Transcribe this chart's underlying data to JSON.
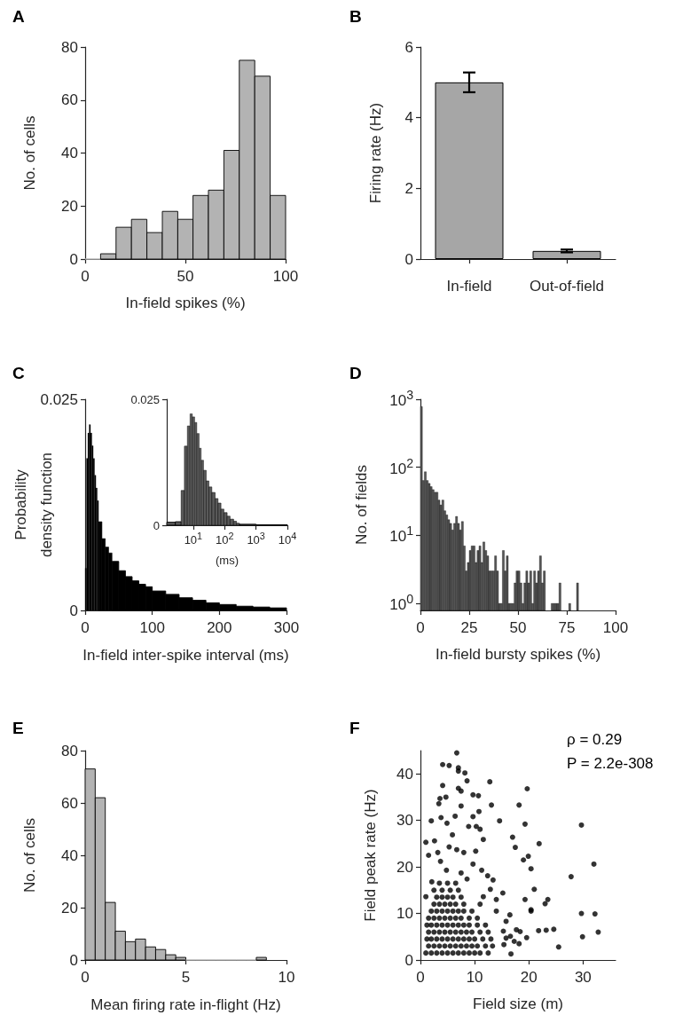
{
  "chart_data": [
    {
      "type": "histogram",
      "title": "A",
      "xlabel": "In-field spikes (%)",
      "ylabel": "No. of cells",
      "color": "#b3b3b3",
      "bins": [
        0,
        7.7,
        15.4,
        23.1,
        30.8,
        38.5,
        46.2,
        53.8,
        61.5,
        69.2,
        76.9,
        84.6,
        92.3,
        100
      ],
      "values": [
        0,
        2,
        12,
        15,
        10,
        18,
        15,
        24,
        26,
        41,
        75,
        69,
        24
      ],
      "xlim": [
        0,
        100
      ],
      "xticks": [
        0,
        50,
        100
      ],
      "ylim": [
        0,
        80
      ],
      "yticks": [
        0,
        20,
        40,
        60,
        80
      ]
    },
    {
      "type": "bar",
      "title": "B",
      "ylabel": "Firing rate (Hz)",
      "color": "#a6a6a6",
      "categories": [
        "In-field",
        "Out-of-field"
      ],
      "values": [
        5.0,
        0.23
      ],
      "errors": [
        0.28,
        0.04
      ],
      "ylim": [
        0,
        6
      ],
      "yticks": [
        0,
        2,
        4,
        6
      ]
    },
    {
      "type": "histogram",
      "title": "C",
      "xlabel": "In-field inter-spike interval (ms)",
      "ylabel": "Probability density function",
      "color": "#000000",
      "bins": [
        0,
        2,
        4,
        6,
        8,
        10,
        12,
        14,
        16,
        18,
        20,
        25,
        30,
        35,
        40,
        50,
        60,
        70,
        80,
        90,
        100,
        120,
        140,
        160,
        180,
        200,
        225,
        250,
        275,
        300
      ],
      "values": [
        0.005,
        0.018,
        0.021,
        0.022,
        0.021,
        0.0195,
        0.018,
        0.016,
        0.0145,
        0.013,
        0.0105,
        0.0085,
        0.0075,
        0.0068,
        0.0058,
        0.0047,
        0.004,
        0.0035,
        0.0031,
        0.0028,
        0.0023,
        0.0019,
        0.0015,
        0.0012,
        0.0009,
        0.0007,
        0.0005,
        0.0004,
        0.0003
      ],
      "xlim": [
        0,
        300
      ],
      "xticks": [
        0,
        100,
        200,
        300
      ],
      "ylim": [
        0,
        0.025
      ],
      "yticks": [
        0,
        0.025
      ]
    },
    {
      "type": "histogram",
      "xlabel": "(ms)",
      "color": "#595959",
      "log": "x",
      "bins": [
        1.43,
        2.68,
        4.12,
        5.22,
        6.49,
        7.89,
        9.37,
        11.1,
        13.0,
        15.4,
        17.9,
        21.3,
        25.9,
        31.5,
        39.1,
        49.6,
        61.5,
        76.4,
        94.8,
        120,
        149,
        193,
        240,
        298,
        1000,
        10000
      ],
      "values": [
        0.0006,
        0.0007,
        0.0069,
        0.0157,
        0.0197,
        0.0221,
        0.0215,
        0.0204,
        0.0182,
        0.0153,
        0.0129,
        0.0109,
        0.0088,
        0.0076,
        0.0065,
        0.0053,
        0.0044,
        0.0032,
        0.0025,
        0.0018,
        0.0012,
        0.0008,
        0.0004,
        0.0002,
        0.0001
      ],
      "xlim": [
        1.43,
        10000
      ],
      "xticks": [
        {
          "value": 10,
          "label": "10$^{1}$"
        },
        {
          "value": 100,
          "label": "10$^{2}$"
        },
        {
          "value": 1000,
          "label": "10$^{3}$"
        },
        {
          "value": 10000,
          "label": "10$^{4}$"
        }
      ],
      "ylim": [
        0,
        0.025
      ],
      "yticks": [
        0,
        0.025
      ]
    },
    {
      "type": "histogram",
      "title": "D",
      "xlabel": "In-field bursty spikes (%)",
      "ylabel": "No. of fields",
      "color": "#555555",
      "log": true,
      "bins": [
        0,
        1,
        2,
        3,
        4,
        5,
        6,
        7,
        8,
        9,
        10,
        11,
        12,
        13,
        14,
        15,
        16,
        17,
        18,
        19,
        20,
        21,
        22,
        23,
        24,
        25,
        26,
        27,
        28,
        29,
        30,
        31,
        32,
        33,
        34,
        35,
        36,
        37,
        38,
        39,
        40,
        41,
        42,
        43,
        44,
        45,
        46,
        47,
        48,
        49,
        50,
        51,
        52,
        53,
        54,
        55,
        56,
        57,
        58,
        59,
        60,
        61,
        62,
        63,
        64,
        65,
        66,
        67,
        68,
        69,
        70,
        71,
        72,
        73,
        74,
        75,
        76,
        77,
        78,
        79,
        80,
        81,
        82
      ],
      "values": [
        780,
        64,
        86,
        64,
        58,
        52,
        47,
        43,
        43,
        33,
        28,
        33,
        23,
        20,
        17,
        15,
        12,
        15,
        19,
        15,
        12,
        16,
        7,
        3,
        4,
        6,
        7,
        7,
        4,
        6,
        7,
        4,
        8,
        6,
        5,
        3,
        3,
        3,
        5,
        3,
        1,
        1,
        6,
        3,
        5,
        1,
        1,
        1,
        2,
        3,
        3,
        2,
        1,
        2,
        3,
        2,
        3,
        1,
        3,
        2,
        3,
        5,
        2,
        3,
        null,
        null,
        null,
        1,
        1,
        1,
        1,
        2,
        null,
        null,
        null,
        null,
        1,
        null,
        null,
        null,
        2,
        null
      ],
      "xlim": [
        0,
        100
      ],
      "xticks": [
        0,
        25,
        50,
        75,
        100
      ],
      "ylim": [
        0.79,
        1000
      ],
      "yticks": [
        {
          "value": 1,
          "label": "10$^{0}$"
        },
        {
          "value": 10,
          "label": "10$^{1}$"
        },
        {
          "value": 100,
          "label": "10$^{2}$"
        },
        {
          "value": 1000,
          "label": "10$^{3}$"
        }
      ]
    },
    {
      "type": "histogram",
      "title": "E",
      "xlabel": "Mean firing rate in-flight (Hz)",
      "ylabel": "No. of cells",
      "color": "#b3b3b3",
      "bins": [
        0,
        0.5,
        1,
        1.5,
        2,
        2.5,
        3,
        3.5,
        4,
        4.5,
        5,
        5.5,
        6,
        6.5,
        7,
        7.5,
        8,
        8.5,
        9
      ],
      "values": [
        73,
        62,
        22,
        11,
        7,
        8,
        5,
        4,
        2,
        1,
        0,
        0,
        0,
        0,
        0,
        0,
        0,
        1
      ],
      "xlim": [
        0,
        10
      ],
      "xticks": [
        0,
        5,
        10
      ],
      "ylim": [
        0,
        80
      ],
      "yticks": [
        0,
        20,
        40,
        60,
        80
      ]
    },
    {
      "type": "scatter",
      "title": "F",
      "xlabel": "Field size (m)",
      "ylabel": "Field peak rate (Hz)",
      "color": "#000000",
      "marker": "circle",
      "annotations": [
        "ρ = 0.29",
        "P = 2.2e-308"
      ],
      "x": [
        1,
        2,
        3,
        4,
        5,
        6,
        7,
        8,
        9,
        10,
        11,
        12.5,
        1.5,
        2.5,
        3.5,
        4.5,
        5.5,
        6.5,
        7.5,
        8.5,
        9.5,
        10.5,
        12,
        13.3,
        1.2,
        2,
        3,
        4,
        5,
        6,
        7,
        8,
        9,
        10,
        11.5,
        13,
        1.5,
        2.5,
        3.5,
        4.5,
        5.5,
        6.5,
        7.5,
        8.5,
        9.5,
        11,
        12.5,
        1.2,
        2,
        3,
        4,
        5,
        6,
        7,
        8,
        9,
        10.5,
        12,
        1.5,
        2.5,
        3.5,
        4.5,
        5.5,
        6.5,
        7.5,
        9,
        10.5,
        2,
        3,
        4,
        5,
        6,
        7,
        8,
        9.5,
        2.5,
        3.5,
        4.5,
        5.5,
        6.5,
        8,
        11,
        3,
        4,
        5,
        6,
        7.5,
        2.5,
        4,
        5.5,
        7,
        3.5,
        5,
        6.5,
        1.0,
        2.0,
        2.6,
        3.4,
        3.8,
        4.9,
        5.9,
        6.4,
        7.5,
        8.9,
        9.7,
        10.3,
        11.0,
        11.6,
        6.7,
        1.5,
        3.2,
        5.3,
        8.0,
        10.2,
        9.7,
        11.3,
        12.4,
        13.4,
        3.7,
        4.8,
        7.5,
        8.6,
        2.1,
        1.0,
        12.9,
        14.0,
        11.6,
        14.0,
        6.7,
        4.1,
        5.3,
        7.0,
        7.0,
        8.2,
        8.6,
        4.1,
        7.0,
        12.8,
        19.7,
        3.6,
        4.7,
        7.5,
        9.7,
        10.7,
        10.8,
        13.1,
        18.2,
        14.6,
        19.3,
        29.7,
        17.0,
        17.5,
        21.9,
        19.9,
        19.0,
        20.4,
        32.0,
        27.8,
        21.0,
        15.2,
        19.3,
        23.5,
        23.0,
        20.4,
        20.4,
        29.7,
        32.2,
        16.5,
        15.8,
        32.8,
        24.6,
        23.2,
        21.8,
        18.4,
        17.7,
        15.3,
        29.9,
        19.6,
        16.6,
        15.8,
        17.3,
        18.2,
        15.4,
        25.5,
        16.7
      ],
      "values": [
        1.5,
        1.5,
        1.5,
        1.5,
        1.5,
        1.5,
        1.5,
        1.5,
        1.5,
        1.5,
        1.5,
        1.5,
        3,
        3,
        3,
        3,
        3,
        3,
        3,
        3,
        3,
        3,
        3,
        3,
        4.5,
        4.5,
        4.5,
        4.5,
        4.5,
        4.5,
        4.5,
        4.5,
        4.5,
        4.5,
        4.5,
        4.5,
        6,
        6,
        6,
        6,
        6,
        6,
        6,
        6,
        6,
        6,
        6,
        7.5,
        7.5,
        7.5,
        7.5,
        7.5,
        7.5,
        7.5,
        7.5,
        7.5,
        7.5,
        7.5,
        9,
        9,
        9,
        9,
        9,
        9,
        9,
        9,
        9,
        10.5,
        10.5,
        10.5,
        10.5,
        10.5,
        10.5,
        10.5,
        10.5,
        12,
        12,
        12,
        12,
        12,
        12,
        12,
        13.5,
        13.5,
        13.5,
        13.5,
        13.5,
        15,
        15,
        15,
        15,
        16.5,
        16.5,
        16.5,
        25.3,
        29.9,
        25.6,
        33.6,
        30.6,
        29.4,
        26.9,
        30.9,
        33.1,
        28.7,
        30.8,
        28.7,
        28.1,
        25.9,
        23.7,
        22.5,
        23.1,
        24.3,
        23.1,
        23.4,
        20.6,
        19.3,
        18.1,
        17.2,
        21.2,
        19.3,
        18.7,
        17.4,
        16.8,
        13.6,
        15.2,
        13.0,
        13.6,
        10.5,
        44.5,
        42.0,
        41.8,
        41.3,
        40.6,
        40.2,
        38.5,
        37.5,
        36.9,
        38.3,
        36.8,
        34.7,
        35.0,
        36.3,
        35.5,
        35.3,
        31.9,
        33.3,
        33.3,
        29.9,
        29.2,
        29.0,
        26.4,
        24.2,
        25.0,
        22.3,
        21.5,
        19.6,
        20.6,
        17.9,
        15.2,
        14.4,
        13.0,
        13.0,
        12.1,
        10.8,
        10.5,
        10.0,
        9.9,
        9.7,
        8.3,
        6.0,
        6.6,
        6.4,
        6.3,
        6.1,
        6.5,
        6.2,
        5.0,
        4.8,
        5.1,
        4.7,
        4.0,
        3.5,
        3.3,
        2.8,
        1.3
      ],
      "xlim": [
        0,
        36
      ],
      "xticks": [
        0,
        10,
        20,
        30
      ],
      "ylim": [
        0,
        45
      ],
      "yticks": [
        0,
        10,
        20,
        30,
        40
      ]
    }
  ]
}
